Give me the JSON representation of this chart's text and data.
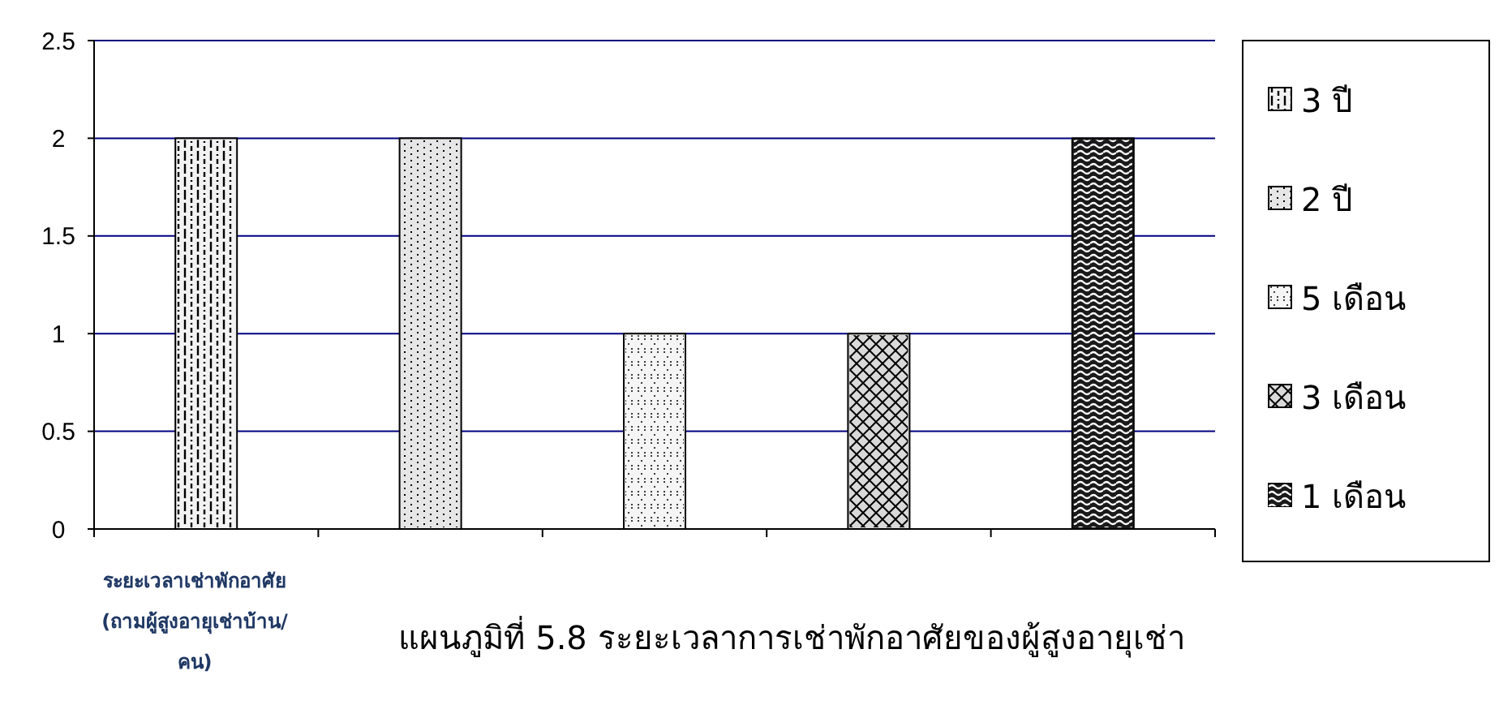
{
  "chart_data": {
    "type": "bar",
    "title": "แผนภูมิที่ 5.8 ระยะเวลาการเช่าพักอาศัยของผู้สูงอายุเช่า",
    "xlabel": "ระยะเวลาเช่าพักอาศัย (ถามผู้สูงอายุเช่าบ้าน/คน)",
    "categories": [
      null,
      null,
      null,
      null,
      null
    ],
    "series": [
      {
        "name": "3 ปี",
        "color": "#f2f2f2",
        "values": [
          2,
          null,
          null,
          null,
          null
        ]
      },
      {
        "name": "2 ปี",
        "color": "#e6e6e6",
        "values": [
          null,
          2,
          null,
          null,
          null
        ]
      },
      {
        "name": "5 เดือน",
        "color": "#f5f5f5",
        "values": [
          null,
          null,
          1,
          null,
          null
        ]
      },
      {
        "name": "3 เดือน",
        "color": "#d9d9d9",
        "values": [
          null,
          null,
          null,
          1,
          null
        ]
      },
      {
        "name": "1 เดือน",
        "color": "#1a1a1a",
        "values": [
          null,
          null,
          null,
          null,
          2
        ]
      }
    ],
    "ylim": [
      0,
      2.5
    ],
    "yticks": [
      0,
      0.5,
      1,
      1.5,
      2,
      2.5
    ],
    "grid": "y",
    "legend": "right"
  }
}
